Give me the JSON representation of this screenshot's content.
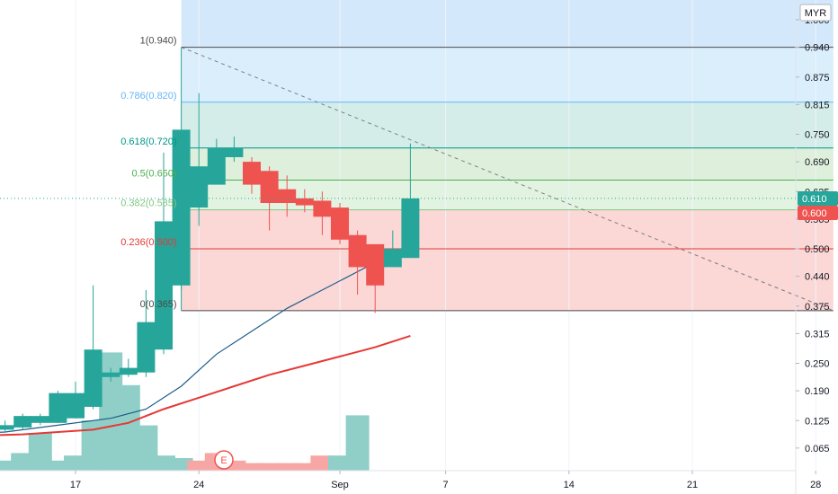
{
  "currency_label": "MYR",
  "last_price_label": "0.610",
  "second_price_label": "0.600",
  "earnings_marker": "E",
  "colors": {
    "up": "#26a69a",
    "down": "#ef5350",
    "ma_short": "#1e5d8a",
    "ma_long": "#e53935",
    "fib_level": "#4a4a4a"
  },
  "chart_data": {
    "type": "candlestick",
    "title": "",
    "ylim": [
      0.03,
      1.05
    ],
    "y_ticks": [
      {
        "value": 1.0,
        "label": "1.000"
      },
      {
        "value": 0.94,
        "label": "0.940"
      },
      {
        "value": 0.875,
        "label": "0.875"
      },
      {
        "value": 0.815,
        "label": "0.815"
      },
      {
        "value": 0.75,
        "label": "0.750"
      },
      {
        "value": 0.69,
        "label": "0.690"
      },
      {
        "value": 0.625,
        "label": "0.625"
      },
      {
        "value": 0.565,
        "label": "0.565"
      },
      {
        "value": 0.5,
        "label": "0.500"
      },
      {
        "value": 0.44,
        "label": "0.440"
      },
      {
        "value": 0.375,
        "label": "0.375"
      },
      {
        "value": 0.315,
        "label": "0.315"
      },
      {
        "value": 0.25,
        "label": "0.250"
      },
      {
        "value": 0.19,
        "label": "0.190"
      },
      {
        "value": 0.125,
        "label": "0.125"
      },
      {
        "value": 0.065,
        "label": "0.065"
      }
    ],
    "x_ticks": [
      {
        "day": 17,
        "label": "17"
      },
      {
        "day": 24,
        "label": "24"
      },
      {
        "day": 32,
        "label": "Sep"
      },
      {
        "day": 38,
        "label": "7"
      },
      {
        "day": 45,
        "label": "14"
      },
      {
        "day": 52,
        "label": "21"
      },
      {
        "day": 59,
        "label": "28"
      }
    ],
    "candles": [
      {
        "day": 12,
        "o": 0.1,
        "h": 0.115,
        "l": 0.095,
        "c": 0.105
      },
      {
        "day": 13,
        "o": 0.105,
        "h": 0.125,
        "l": 0.1,
        "c": 0.115
      },
      {
        "day": 14,
        "o": 0.11,
        "h": 0.14,
        "l": 0.105,
        "c": 0.135
      },
      {
        "day": 15,
        "o": 0.12,
        "h": 0.14,
        "l": 0.115,
        "c": 0.135
      },
      {
        "day": 16,
        "o": 0.12,
        "h": 0.19,
        "l": 0.12,
        "c": 0.185
      },
      {
        "day": 17,
        "o": 0.13,
        "h": 0.21,
        "l": 0.13,
        "c": 0.185
      },
      {
        "day": 18,
        "o": 0.155,
        "h": 0.42,
        "l": 0.15,
        "c": 0.28
      },
      {
        "day": 19,
        "o": 0.22,
        "h": 0.24,
        "l": 0.21,
        "c": 0.23
      },
      {
        "day": 20,
        "o": 0.225,
        "h": 0.26,
        "l": 0.22,
        "c": 0.24
      },
      {
        "day": 21,
        "o": 0.23,
        "h": 0.41,
        "l": 0.22,
        "c": 0.34
      },
      {
        "day": 22,
        "o": 0.28,
        "h": 0.71,
        "l": 0.27,
        "c": 0.56
      },
      {
        "day": 23,
        "o": 0.42,
        "h": 0.76,
        "l": 0.41,
        "c": 0.76
      },
      {
        "day": 24,
        "o": 0.59,
        "h": 0.84,
        "l": 0.55,
        "c": 0.68
      },
      {
        "day": 25,
        "o": 0.64,
        "h": 0.74,
        "l": 0.64,
        "c": 0.72
      },
      {
        "day": 26,
        "o": 0.7,
        "h": 0.745,
        "l": 0.69,
        "c": 0.72
      },
      {
        "day": 27,
        "o": 0.69,
        "h": 0.7,
        "l": 0.62,
        "c": 0.64
      },
      {
        "day": 28,
        "o": 0.67,
        "h": 0.68,
        "l": 0.54,
        "c": 0.6
      },
      {
        "day": 29,
        "o": 0.63,
        "h": 0.66,
        "l": 0.57,
        "c": 0.6
      },
      {
        "day": 30,
        "o": 0.61,
        "h": 0.63,
        "l": 0.58,
        "c": 0.595
      },
      {
        "day": 31,
        "o": 0.605,
        "h": 0.625,
        "l": 0.53,
        "c": 0.57
      },
      {
        "day": 32,
        "o": 0.59,
        "h": 0.6,
        "l": 0.51,
        "c": 0.52
      },
      {
        "day": 33,
        "o": 0.53,
        "h": 0.54,
        "l": 0.4,
        "c": 0.46
      },
      {
        "day": 34,
        "o": 0.51,
        "h": 0.51,
        "l": 0.36,
        "c": 0.42
      },
      {
        "day": 35,
        "o": 0.46,
        "h": 0.54,
        "l": 0.46,
        "c": 0.5
      },
      {
        "day": 36,
        "o": 0.48,
        "h": 0.73,
        "l": 0.48,
        "c": 0.61
      }
    ],
    "volume": [
      {
        "day": 12,
        "v": 0.02,
        "up": true
      },
      {
        "day": 13,
        "v": 0.04,
        "up": true
      },
      {
        "day": 14,
        "v": 0.07,
        "up": true
      },
      {
        "day": 15,
        "v": 0.15,
        "up": true
      },
      {
        "day": 16,
        "v": 0.04,
        "up": true
      },
      {
        "day": 17,
        "v": 0.06,
        "up": true
      },
      {
        "day": 18,
        "v": 0.2,
        "up": true
      },
      {
        "day": 19,
        "v": 0.47,
        "up": true
      },
      {
        "day": 20,
        "v": 0.34,
        "up": true
      },
      {
        "day": 21,
        "v": 0.18,
        "up": true
      },
      {
        "day": 22,
        "v": 0.06,
        "up": true
      },
      {
        "day": 23,
        "v": 0.05,
        "up": true
      },
      {
        "day": 24,
        "v": 0.04,
        "up": false
      },
      {
        "day": 25,
        "v": 0.07,
        "up": false
      },
      {
        "day": 26,
        "v": 0.04,
        "up": false
      },
      {
        "day": 27,
        "v": 0.03,
        "up": false
      },
      {
        "day": 28,
        "v": 0.03,
        "up": false
      },
      {
        "day": 29,
        "v": 0.03,
        "up": false
      },
      {
        "day": 30,
        "v": 0.03,
        "up": false
      },
      {
        "day": 31,
        "v": 0.06,
        "up": false
      },
      {
        "day": 32,
        "v": 0.06,
        "up": true
      },
      {
        "day": 33,
        "v": 0.22,
        "up": true
      }
    ],
    "ma_short": [
      {
        "day": 10,
        "v": 0.095
      },
      {
        "day": 13,
        "v": 0.1
      },
      {
        "day": 16,
        "v": 0.115
      },
      {
        "day": 19,
        "v": 0.13
      },
      {
        "day": 21,
        "v": 0.15
      },
      {
        "day": 23,
        "v": 0.2
      },
      {
        "day": 25,
        "v": 0.27
      },
      {
        "day": 27,
        "v": 0.32
      },
      {
        "day": 29,
        "v": 0.37
      },
      {
        "day": 31,
        "v": 0.41
      },
      {
        "day": 33,
        "v": 0.45
      },
      {
        "day": 35,
        "v": 0.49
      },
      {
        "day": 36,
        "v": 0.51
      }
    ],
    "ma_long": [
      {
        "day": 10,
        "v": 0.09
      },
      {
        "day": 14,
        "v": 0.095
      },
      {
        "day": 18,
        "v": 0.105
      },
      {
        "day": 20,
        "v": 0.12
      },
      {
        "day": 22,
        "v": 0.15
      },
      {
        "day": 24,
        "v": 0.175
      },
      {
        "day": 26,
        "v": 0.2
      },
      {
        "day": 28,
        "v": 0.225
      },
      {
        "day": 30,
        "v": 0.245
      },
      {
        "day": 32,
        "v": 0.265
      },
      {
        "day": 34,
        "v": 0.285
      },
      {
        "day": 36,
        "v": 0.31
      }
    ],
    "fib_retracement": {
      "start_day": 23,
      "end_day": 60,
      "levels": [
        {
          "ratio": 1.0,
          "price": 0.94,
          "label": "1(0.940)",
          "color": "#4a4a4a",
          "fill": "#e2e2e2"
        },
        {
          "ratio": 0.786,
          "price": 0.82,
          "label": "0.786(0.820)",
          "color": "#64b5f6",
          "fill": "#dbeefc"
        },
        {
          "ratio": 0.618,
          "price": 0.72,
          "label": "0.618(0.720)",
          "color": "#009688",
          "fill": "#d4ede8"
        },
        {
          "ratio": 0.5,
          "price": 0.65,
          "label": "0.5(0.650)",
          "color": "#4caf50",
          "fill": "#deefdc"
        },
        {
          "ratio": 0.382,
          "price": 0.585,
          "label": "0.382(0.585)",
          "color": "#81c784",
          "fill": "#e3f3e1"
        },
        {
          "ratio": 0.236,
          "price": 0.5,
          "label": "0.236(0.500)",
          "color": "#e53935",
          "fill": "#fbd7d6"
        },
        {
          "ratio": 0,
          "price": 0.365,
          "label": "0(0.365)",
          "color": "#4a4a4a"
        }
      ],
      "extension_fill": "#d4e8fb"
    }
  }
}
